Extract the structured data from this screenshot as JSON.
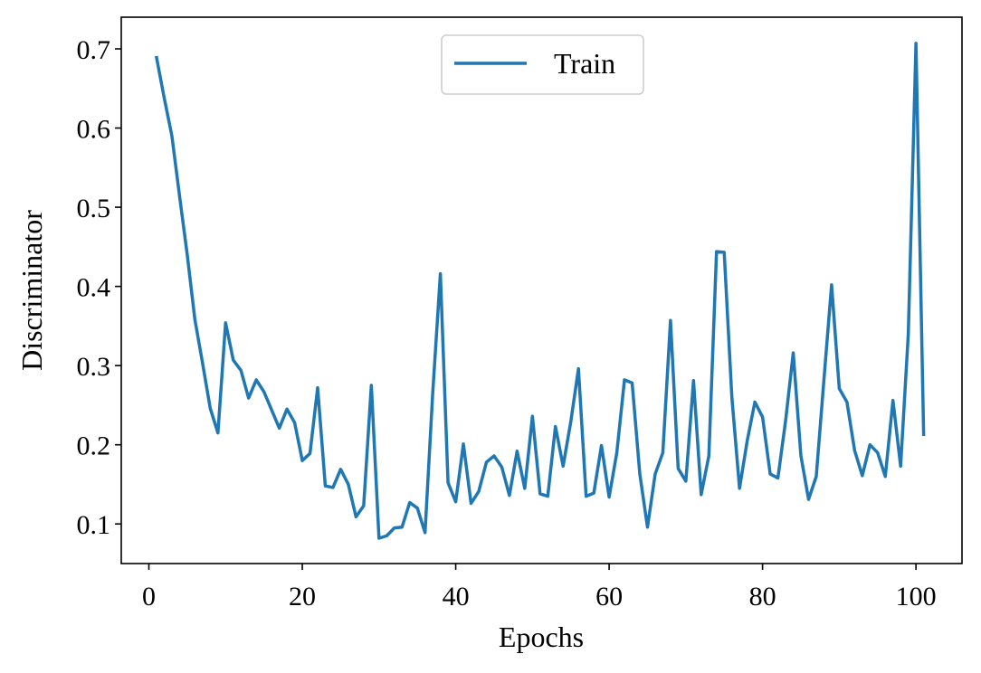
{
  "chart_data": {
    "type": "line",
    "title": "",
    "xlabel": "Epochs",
    "ylabel": "Discriminator",
    "xlim": [
      -3.6,
      106.0
    ],
    "ylim": [
      0.05,
      0.74
    ],
    "xticks": [
      0,
      20,
      40,
      60,
      80,
      100
    ],
    "yticks": [
      0.1,
      0.2,
      0.3,
      0.4,
      0.5,
      0.6,
      0.7
    ],
    "xtick_labels": [
      "0",
      "20",
      "40",
      "60",
      "80",
      "100"
    ],
    "ytick_labels": [
      "0.1",
      "0.2",
      "0.3",
      "0.4",
      "0.5",
      "0.6",
      "0.7"
    ],
    "grid": false,
    "legend_position": "top-center",
    "series": [
      {
        "name": "Train",
        "color": "#1f77b4",
        "x": [
          1,
          2,
          3,
          4,
          5,
          6,
          7,
          8,
          9,
          10,
          11,
          12,
          13,
          14,
          15,
          16,
          17,
          18,
          19,
          20,
          21,
          22,
          23,
          24,
          25,
          26,
          27,
          28,
          29,
          30,
          31,
          32,
          33,
          34,
          35,
          36,
          37,
          38,
          39,
          40,
          41,
          42,
          43,
          44,
          45,
          46,
          47,
          48,
          49,
          50,
          51,
          52,
          53,
          54,
          55,
          56,
          57,
          58,
          59,
          60,
          61,
          62,
          63,
          64,
          65,
          66,
          67,
          68,
          69,
          70,
          71,
          72,
          73,
          74,
          75,
          76,
          77,
          78,
          79,
          80,
          81,
          82,
          83,
          84,
          85,
          86,
          87,
          88,
          89,
          90,
          91,
          92,
          93,
          94,
          95,
          96,
          97,
          98,
          99,
          100,
          101
        ],
        "y": [
          0.689,
          0.638,
          0.59,
          0.514,
          0.44,
          0.358,
          0.303,
          0.246,
          0.215,
          0.354,
          0.307,
          0.294,
          0.259,
          0.282,
          0.267,
          0.244,
          0.221,
          0.245,
          0.228,
          0.18,
          0.189,
          0.272,
          0.148,
          0.146,
          0.169,
          0.15,
          0.109,
          0.123,
          0.275,
          0.082,
          0.085,
          0.095,
          0.096,
          0.127,
          0.12,
          0.089,
          0.265,
          0.416,
          0.152,
          0.128,
          0.201,
          0.126,
          0.141,
          0.178,
          0.186,
          0.172,
          0.136,
          0.192,
          0.145,
          0.236,
          0.138,
          0.135,
          0.223,
          0.173,
          0.229,
          0.296,
          0.135,
          0.139,
          0.199,
          0.134,
          0.19,
          0.282,
          0.278,
          0.163,
          0.096,
          0.163,
          0.19,
          0.357,
          0.17,
          0.154,
          0.281,
          0.137,
          0.186,
          0.444,
          0.443,
          0.26,
          0.145,
          0.205,
          0.254,
          0.235,
          0.163,
          0.158,
          0.23,
          0.316,
          0.186,
          0.131,
          0.16,
          0.282,
          0.402,
          0.271,
          0.254,
          0.193,
          0.161,
          0.2,
          0.19,
          0.16,
          0.256,
          0.173,
          0.34,
          0.707,
          0.213
        ]
      }
    ]
  }
}
